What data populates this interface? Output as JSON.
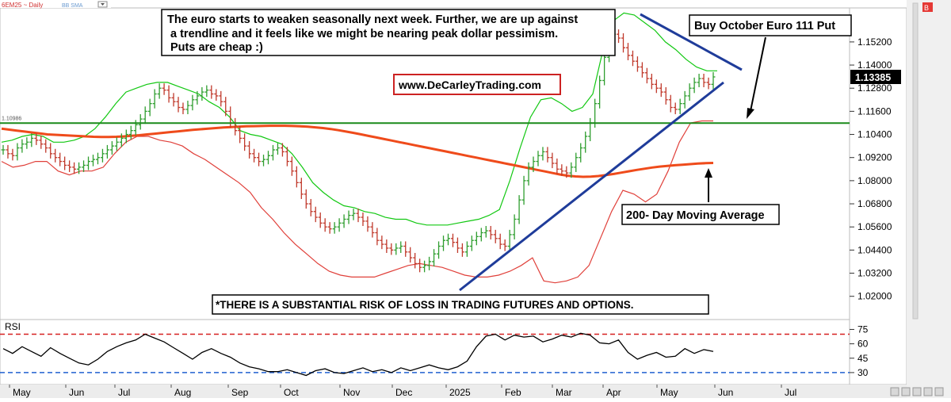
{
  "header": {
    "symbol": "6EM25 ~ Daily",
    "indicator": "BB SMA",
    "corner_tag": "B"
  },
  "chart_data": [
    {
      "type": "ohlc",
      "xlabel": "",
      "ylabel": "",
      "x_ticks": [
        "May",
        "Jun",
        "Jul",
        "Aug",
        "Sep",
        "Oct",
        "Nov",
        "Dec",
        "2025",
        "Feb",
        "Mar",
        "Apr",
        "May",
        "Jun",
        "Jul"
      ],
      "y_ticks": [
        "1.15200",
        "1.14000",
        "1.12800",
        "1.11600",
        "1.10400",
        "1.09200",
        "1.08000",
        "1.06800",
        "1.05600",
        "1.04400",
        "1.03200",
        "1.02000"
      ],
      "ylim": [
        1.01,
        1.168
      ],
      "last_price": "1.13385",
      "horizontal_line_label": "1.10986",
      "horizontal_line_value": 1.10986,
      "close_series": [
        1.096,
        1.094,
        1.093,
        1.097,
        1.099,
        1.1,
        1.102,
        1.101,
        1.099,
        1.097,
        1.094,
        1.092,
        1.09,
        1.088,
        1.087,
        1.086,
        1.087,
        1.088,
        1.09,
        1.091,
        1.092,
        1.094,
        1.096,
        1.098,
        1.1,
        1.102,
        1.104,
        1.106,
        1.109,
        1.112,
        1.116,
        1.12,
        1.125,
        1.128,
        1.127,
        1.123,
        1.121,
        1.118,
        1.117,
        1.119,
        1.122,
        1.124,
        1.126,
        1.127,
        1.125,
        1.124,
        1.121,
        1.116,
        1.11,
        1.106,
        1.102,
        1.098,
        1.094,
        1.092,
        1.09,
        1.091,
        1.093,
        1.096,
        1.097,
        1.095,
        1.09,
        1.085,
        1.079,
        1.073,
        1.068,
        1.064,
        1.061,
        1.058,
        1.056,
        1.055,
        1.056,
        1.058,
        1.06,
        1.062,
        1.063,
        1.061,
        1.059,
        1.056,
        1.053,
        1.049,
        1.047,
        1.045,
        1.044,
        1.045,
        1.046,
        1.043,
        1.04,
        1.037,
        1.035,
        1.036,
        1.038,
        1.042,
        1.046,
        1.049,
        1.05,
        1.048,
        1.045,
        1.043,
        1.046,
        1.049,
        1.051,
        1.053,
        1.054,
        1.052,
        1.05,
        1.047,
        1.046,
        1.052,
        1.06,
        1.07,
        1.08,
        1.087,
        1.09,
        1.093,
        1.095,
        1.092,
        1.089,
        1.086,
        1.085,
        1.084,
        1.087,
        1.092,
        1.097,
        1.103,
        1.11,
        1.12,
        1.132,
        1.144,
        1.152,
        1.156,
        1.154,
        1.149,
        1.145,
        1.142,
        1.139,
        1.136,
        1.133,
        1.13,
        1.128,
        1.126,
        1.122,
        1.118,
        1.117,
        1.12,
        1.124,
        1.128,
        1.131,
        1.133,
        1.131,
        1.13,
        1.13385
      ],
      "series": [
        {
          "name": "200- Day Moving Average",
          "color": "#ef4b1b",
          "values": [
            1.107,
            1.1065,
            1.106,
            1.1055,
            1.105,
            1.1045,
            1.104,
            1.1038,
            1.1036,
            1.1034,
            1.1032,
            1.103,
            1.1028,
            1.1027,
            1.1027,
            1.1028,
            1.103,
            1.1033,
            1.1036,
            1.104,
            1.1044,
            1.1048,
            1.1052,
            1.1056,
            1.106,
            1.1064,
            1.1067,
            1.107,
            1.1073,
            1.1076,
            1.1078,
            1.108,
            1.1082,
            1.1083,
            1.1084,
            1.1085,
            1.1085,
            1.1085,
            1.1084,
            1.1082,
            1.108,
            1.1077,
            1.1073,
            1.1068,
            1.1062,
            1.1055,
            1.1048,
            1.104,
            1.1032,
            1.1024,
            1.1016,
            1.1008,
            1.1,
            1.0992,
            1.0984,
            1.0976,
            1.0968,
            1.096,
            1.0952,
            1.0944,
            1.0936,
            1.0928,
            1.092,
            1.0912,
            1.0904,
            1.0896,
            1.0888,
            1.088,
            1.0872,
            1.0864,
            1.0856,
            1.0848,
            1.084,
            1.0832,
            1.0826,
            1.0822,
            1.082,
            1.0821,
            1.0824,
            1.0829,
            1.0835,
            1.0842,
            1.0849,
            1.0856,
            1.0862,
            1.0868,
            1.0873,
            1.0877,
            1.088,
            1.0883,
            1.0886,
            1.0889,
            1.0891,
            1.0892
          ]
        },
        {
          "name": "Upper Bollinger Band",
          "color": "#12c812",
          "values": [
            1.1,
            1.101,
            1.103,
            1.104,
            1.103,
            1.1,
            1.1,
            1.101,
            1.103,
            1.107,
            1.113,
            1.12,
            1.126,
            1.128,
            1.13,
            1.131,
            1.131,
            1.129,
            1.127,
            1.125,
            1.121,
            1.118,
            1.113,
            1.106,
            1.104,
            1.103,
            1.101,
            1.099,
            1.094,
            1.087,
            1.079,
            1.074,
            1.07,
            1.067,
            1.066,
            1.064,
            1.063,
            1.061,
            1.06,
            1.06,
            1.058,
            1.057,
            1.057,
            1.057,
            1.058,
            1.059,
            1.06,
            1.062,
            1.065,
            1.08,
            1.097,
            1.113,
            1.122,
            1.123,
            1.12,
            1.116,
            1.118,
            1.125,
            1.148,
            1.163,
            1.167,
            1.166,
            1.162,
            1.158,
            1.152,
            1.148,
            1.143,
            1.139,
            1.137,
            1.137
          ]
        },
        {
          "name": "Lower Bollinger Band",
          "color": "#e0403a",
          "values": [
            1.09,
            1.087,
            1.088,
            1.09,
            1.09,
            1.085,
            1.083,
            1.085,
            1.085,
            1.087,
            1.094,
            1.1,
            1.103,
            1.103,
            1.101,
            1.1,
            1.098,
            1.094,
            1.091,
            1.087,
            1.083,
            1.079,
            1.074,
            1.066,
            1.06,
            1.053,
            1.047,
            1.042,
            1.037,
            1.033,
            1.031,
            1.03,
            1.03,
            1.03,
            1.032,
            1.034,
            1.036,
            1.037,
            1.036,
            1.035,
            1.033,
            1.031,
            1.03,
            1.03,
            1.031,
            1.033,
            1.036,
            1.04,
            1.028,
            1.027,
            1.028,
            1.03,
            1.036,
            1.05,
            1.064,
            1.075,
            1.073,
            1.069,
            1.073,
            1.085,
            1.1,
            1.11,
            1.111,
            1.111
          ]
        }
      ],
      "trendlines": [
        "rising support trendline",
        "falling resistance trendline"
      ],
      "annotations": [
        "The euro starts to weaken seasonally next week. Further, we are up against",
        "a trendline and it feels like we might be nearing peak dollar pessimism.",
        "Puts are cheap :)",
        "www.DeCarleyTrading.com",
        "Buy October Euro 111 Put",
        "200- Day Moving Average",
        "*THERE IS A SUBSTANTIAL RISK OF LOSS IN TRADING FUTURES AND OPTIONS."
      ],
      "colors": {
        "up_bar": "#2f9e2f",
        "down_bar": "#c0392b",
        "horizontal_line": "#1a8a1a",
        "trendline": "#1f3c9a",
        "price_box": "#000000",
        "annotation_border_red": "#cc2222"
      },
      "grid": false
    },
    {
      "type": "line",
      "title": "RSI",
      "y_ticks": [
        "75",
        "60",
        "45",
        "30"
      ],
      "ylim": [
        20,
        82
      ],
      "overbought": 70,
      "oversold": 30,
      "series": [
        {
          "name": "RSI",
          "color": "#000000",
          "values": [
            55,
            50,
            57,
            52,
            47,
            56,
            50,
            45,
            40,
            38,
            44,
            52,
            57,
            61,
            64,
            70,
            66,
            62,
            56,
            50,
            44,
            51,
            55,
            50,
            46,
            40,
            36,
            34,
            31,
            31,
            33,
            30,
            27,
            32,
            34,
            30,
            29,
            32,
            35,
            31,
            33,
            30,
            35,
            32,
            35,
            38,
            35,
            33,
            36,
            42,
            57,
            68,
            70,
            64,
            69,
            67,
            68,
            62,
            65,
            69,
            67,
            71,
            69,
            61,
            60,
            64,
            51,
            44,
            48,
            51,
            46,
            47,
            55,
            50,
            54,
            52
          ]
        }
      ],
      "colors": {
        "overbought_line": "#d62020",
        "oversold_line": "#2060d0"
      }
    }
  ]
}
